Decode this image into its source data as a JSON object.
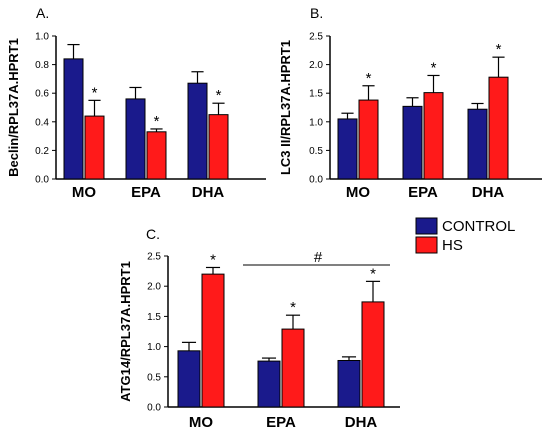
{
  "colors": {
    "control": "#1a1a8c",
    "hs": "#ff1a1a",
    "axis": "#000000"
  },
  "legend": [
    {
      "name": "CONTROL",
      "color": "#1a1a8c"
    },
    {
      "name": "HS",
      "color": "#ff1a1a"
    }
  ],
  "chart_data": [
    {
      "type": "bar",
      "panel_label": "A.",
      "ylabel": "Beclin/RPL37A.HPRT1",
      "categories": [
        "MO",
        "EPA",
        "DHA"
      ],
      "ylim": [
        0,
        1.0
      ],
      "yticks": [
        "0.0",
        "0.2",
        "0.4",
        "0.6",
        "0.8",
        "1.0"
      ],
      "series": [
        {
          "name": "CONTROL",
          "values": [
            0.84,
            0.56,
            0.67
          ],
          "errors": [
            0.1,
            0.08,
            0.08
          ]
        },
        {
          "name": "HS",
          "values": [
            0.44,
            0.33,
            0.45
          ],
          "errors": [
            0.11,
            0.02,
            0.08
          ]
        }
      ],
      "annotations": {
        "hs_star": [
          "*",
          "*",
          "*"
        ]
      }
    },
    {
      "type": "bar",
      "panel_label": "B.",
      "ylabel": "LC3 II/RPL37A.HPRT1",
      "categories": [
        "MO",
        "EPA",
        "DHA"
      ],
      "ylim": [
        0,
        2.5
      ],
      "yticks": [
        "0.0",
        "0.5",
        "1.0",
        "1.5",
        "2.0",
        "2.5"
      ],
      "series": [
        {
          "name": "CONTROL",
          "values": [
            1.05,
            1.27,
            1.22
          ],
          "errors": [
            0.1,
            0.15,
            0.1
          ]
        },
        {
          "name": "HS",
          "values": [
            1.38,
            1.51,
            1.78
          ],
          "errors": [
            0.25,
            0.3,
            0.35
          ]
        }
      ],
      "annotations": {
        "hs_star": [
          "*",
          "*",
          "*"
        ]
      }
    },
    {
      "type": "bar",
      "panel_label": "C.",
      "ylabel": "ATG14/RPL37A.HPRT1",
      "categories": [
        "MO",
        "EPA",
        "DHA"
      ],
      "ylim": [
        0,
        2.5
      ],
      "yticks": [
        "0.0",
        "0.5",
        "1.0",
        "1.5",
        "2.0",
        "2.5"
      ],
      "series": [
        {
          "name": "CONTROL",
          "values": [
            0.93,
            0.76,
            0.77
          ],
          "errors": [
            0.14,
            0.05,
            0.06
          ]
        },
        {
          "name": "HS",
          "values": [
            2.2,
            1.29,
            1.74
          ],
          "errors": [
            0.11,
            0.23,
            0.34
          ]
        }
      ],
      "annotations": {
        "hs_star": [
          "*",
          "*",
          "*"
        ],
        "bracket_symbol": "#"
      }
    }
  ]
}
